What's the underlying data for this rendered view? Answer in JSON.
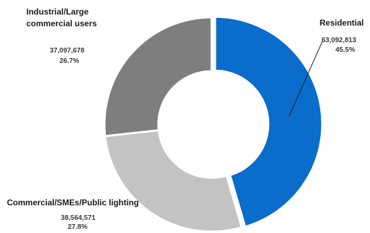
{
  "chart_data": {
    "type": "pie",
    "style": "donut",
    "categories": [
      "Residential",
      "Commercial/SMEs/Public lighting",
      "Industrial/Large commercial users"
    ],
    "values": [
      63092813,
      38564571,
      37097678
    ],
    "value_labels": [
      "63,092,813",
      "38,564,571",
      "37,097,678"
    ],
    "percent_labels": [
      "45.5%",
      "27.8%",
      "26.7%"
    ],
    "name_labels": [
      "Residential",
      "Commercial/SMEs/Public lighting",
      "Industrial/Large\ncommercial users"
    ],
    "colors": [
      "#0a6ccb",
      "#c3c3c3",
      "#7e7e7e"
    ],
    "start_angle_deg": 0,
    "direction": "clockwise",
    "legend": "none"
  }
}
